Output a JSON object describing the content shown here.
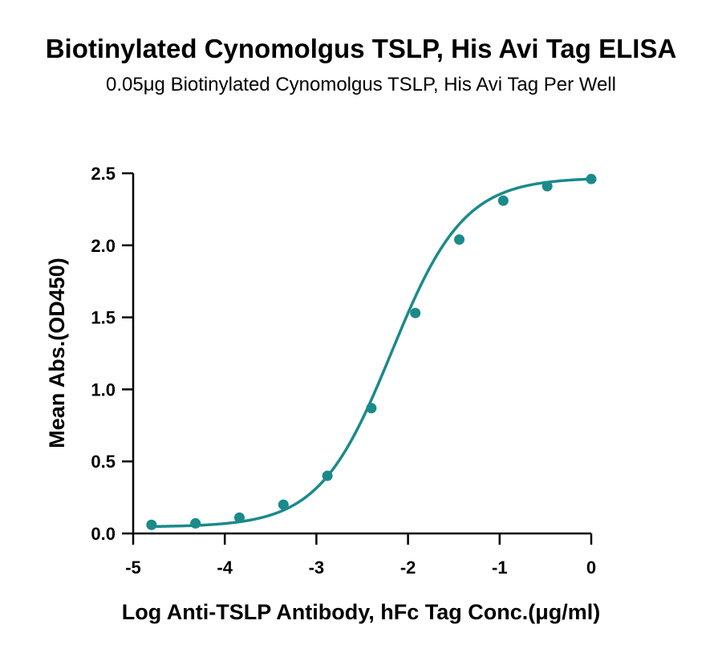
{
  "chart_data": {
    "type": "line",
    "title": "Biotinylated Cynomolgus TSLP, His Avi Tag ELISA",
    "subtitle": "0.05μg Biotinylated Cynomolgus TSLP, His Avi Tag Per Well",
    "xlabel": "Log Anti-TSLP Antibody, hFc Tag Conc.(μg/ml)",
    "ylabel": "Mean Abs.(OD450)",
    "xlim": [
      -5,
      0
    ],
    "ylim": [
      0,
      2.5
    ],
    "x_ticks": [
      -5,
      -4,
      -3,
      -2,
      -1,
      0
    ],
    "y_ticks": [
      0.0,
      0.5,
      1.0,
      1.5,
      2.0,
      2.5
    ],
    "x_tick_labels": [
      "-5",
      "-4",
      "-3",
      "-2",
      "-1",
      "0"
    ],
    "y_tick_labels": [
      "0.0",
      "0.5",
      "1.0",
      "1.5",
      "2.0",
      "2.5"
    ],
    "grid": false,
    "series": [
      {
        "color": "#1b8a8a",
        "points": [
          {
            "x": -4.8,
            "y": 0.06
          },
          {
            "x": -4.32,
            "y": 0.07
          },
          {
            "x": -3.84,
            "y": 0.11
          },
          {
            "x": -3.36,
            "y": 0.2
          },
          {
            "x": -2.88,
            "y": 0.4
          },
          {
            "x": -2.4,
            "y": 0.87
          },
          {
            "x": -1.92,
            "y": 1.53
          },
          {
            "x": -1.44,
            "y": 2.04
          },
          {
            "x": -0.96,
            "y": 2.31
          },
          {
            "x": -0.48,
            "y": 2.41
          },
          {
            "x": 0.0,
            "y": 2.46
          }
        ],
        "fit": {
          "bottom": 0.045,
          "top": 2.47,
          "log_ec50": -2.18,
          "hill_slope": 1.1
        }
      }
    ]
  }
}
